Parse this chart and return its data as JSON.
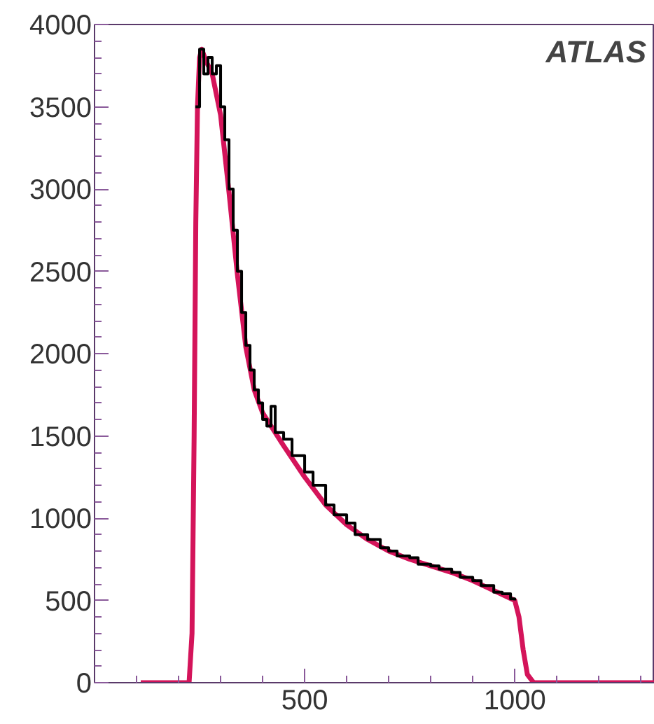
{
  "chart_data": {
    "type": "step",
    "xlim": [
      0,
      1333
    ],
    "ylim": [
      0,
      4000
    ],
    "xticks": [
      500,
      1000
    ],
    "yticks": [
      0,
      500,
      1000,
      1500,
      2000,
      2500,
      3000,
      3500,
      4000
    ],
    "grid": false,
    "annotations": [
      "ATLAS"
    ],
    "series": [
      {
        "type": "line",
        "color": "#d4145a",
        "x": [
          110,
          225,
          232,
          237,
          241,
          245,
          250,
          255,
          265,
          280,
          300,
          320,
          340,
          360,
          380,
          400,
          450,
          500,
          550,
          600,
          650,
          700,
          750,
          800,
          850,
          900,
          950,
          1000,
          1010,
          1020,
          1030,
          1045,
          1333
        ],
        "values": [
          0,
          0,
          300,
          1500,
          2800,
          3500,
          3800,
          3850,
          3780,
          3700,
          3450,
          2980,
          2480,
          2040,
          1780,
          1640,
          1440,
          1250,
          1080,
          960,
          870,
          800,
          750,
          710,
          670,
          620,
          560,
          500,
          400,
          200,
          50,
          0,
          0
        ]
      },
      {
        "color": "#000000",
        "x": [
          240,
          250,
          260,
          270,
          280,
          290,
          300,
          310,
          320,
          330,
          340,
          350,
          360,
          370,
          380,
          390,
          400,
          410,
          420,
          430,
          450,
          470,
          500,
          520,
          550,
          570,
          600,
          620,
          650,
          680,
          700,
          720,
          750,
          770,
          800,
          820,
          850,
          870,
          900,
          920,
          950,
          970,
          990,
          1000
        ],
        "values": [
          3500,
          3850,
          3700,
          3800,
          3700,
          3750,
          3500,
          3300,
          3000,
          2750,
          2500,
          2250,
          2050,
          1900,
          1780,
          1700,
          1600,
          1560,
          1680,
          1520,
          1480,
          1380,
          1280,
          1200,
          1080,
          1020,
          970,
          900,
          870,
          820,
          800,
          770,
          760,
          720,
          710,
          690,
          670,
          640,
          620,
          590,
          550,
          540,
          510,
          500
        ]
      }
    ]
  }
}
